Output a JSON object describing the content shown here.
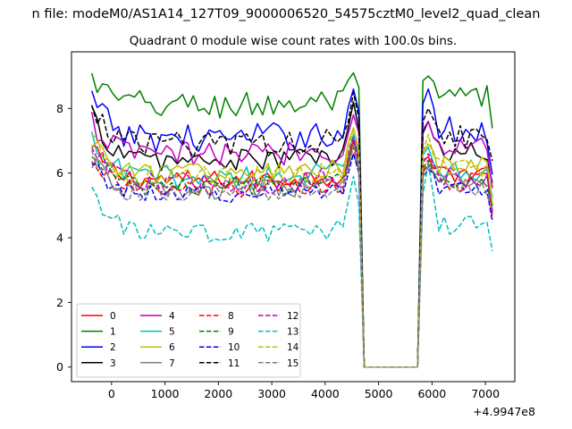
{
  "chart_data": {
    "type": "line",
    "suptitle": "n file: modeM0/AS1A14_127T09_9000006520_54575cztM0_level2_quad_clean",
    "title": "Quadrant 0 module wise count rates with 100.0s bins.",
    "xlabel": "",
    "ylabel": "",
    "xlim": [
      -750,
      7550
    ],
    "ylim": [
      -0.45,
      9.75
    ],
    "x_offset_label": "+4.9947e8",
    "xticks": [
      0,
      1000,
      2000,
      3000,
      4000,
      5000,
      6000,
      7000
    ],
    "yticks": [
      0,
      2,
      4,
      6,
      8
    ],
    "xtick_labels": [
      "0",
      "1000",
      "2000",
      "3000",
      "4000",
      "5000",
      "6000",
      "7000"
    ],
    "ytick_labels": [
      "0",
      "2",
      "4",
      "6",
      "8"
    ],
    "grid": false,
    "legend_position": "lower-left",
    "legend_columns": 4,
    "series": [
      {
        "name": "0",
        "color": "#ff0000",
        "style": "solid",
        "base": 5.9,
        "amp": 0.3,
        "peak1": 7.0,
        "peak2": 6.5
      },
      {
        "name": "1",
        "color": "#008000",
        "style": "solid",
        "base": 8.2,
        "amp": 0.45,
        "peak1": 9.1,
        "peak2": 9.0
      },
      {
        "name": "2",
        "color": "#0000ff",
        "style": "solid",
        "base": 7.2,
        "amp": 0.45,
        "peak1": 8.6,
        "peak2": 8.6
      },
      {
        "name": "3",
        "color": "#000000",
        "style": "solid",
        "base": 6.5,
        "amp": 0.35,
        "peak1": 8.2,
        "peak2": 7.6
      },
      {
        "name": "4",
        "color": "#bf00bf",
        "style": "solid",
        "base": 6.7,
        "amp": 0.4,
        "peak1": 7.8,
        "peak2": 7.6
      },
      {
        "name": "5",
        "color": "#00bfbf",
        "style": "solid",
        "base": 6.0,
        "amp": 0.35,
        "peak1": 7.2,
        "peak2": 6.8
      },
      {
        "name": "6",
        "color": "#bfbf00",
        "style": "solid",
        "base": 6.1,
        "amp": 0.35,
        "peak1": 7.4,
        "peak2": 6.9
      },
      {
        "name": "7",
        "color": "#808080",
        "style": "solid",
        "base": 5.6,
        "amp": 0.3,
        "peak1": 6.6,
        "peak2": 6.2
      },
      {
        "name": "8",
        "color": "#ff0000",
        "style": "dashed",
        "base": 5.6,
        "amp": 0.3,
        "peak1": 6.8,
        "peak2": 6.3
      },
      {
        "name": "9",
        "color": "#008000",
        "style": "dashed",
        "base": 5.7,
        "amp": 0.3,
        "peak1": 6.9,
        "peak2": 6.4
      },
      {
        "name": "10",
        "color": "#0000ff",
        "style": "dashed",
        "base": 5.5,
        "amp": 0.3,
        "peak1": 6.6,
        "peak2": 6.1
      },
      {
        "name": "11",
        "color": "#000000",
        "style": "dashed",
        "base": 7.0,
        "amp": 0.4,
        "peak1": 8.5,
        "peak2": 8.0
      },
      {
        "name": "12",
        "color": "#bf00bf",
        "style": "dashed",
        "base": 5.8,
        "amp": 0.35,
        "peak1": 7.1,
        "peak2": 6.6
      },
      {
        "name": "13",
        "color": "#00bfbf",
        "style": "dashed",
        "base": 4.25,
        "amp": 0.3,
        "peak1": 5.9,
        "peak2": 6.3
      },
      {
        "name": "14",
        "color": "#bfbf00",
        "style": "dashed",
        "base": 6.0,
        "amp": 0.35,
        "peak1": 7.4,
        "peak2": 7.2
      },
      {
        "name": "15",
        "color": "#808080",
        "style": "dashed",
        "base": 5.5,
        "amp": 0.3,
        "peak1": 6.9,
        "peak2": 6.2
      }
    ],
    "time_range": [
      -370,
      7170
    ],
    "gap_range": [
      4660,
      5760
    ],
    "peak_times": [
      4560,
      5960
    ],
    "bin_seconds": 100
  }
}
